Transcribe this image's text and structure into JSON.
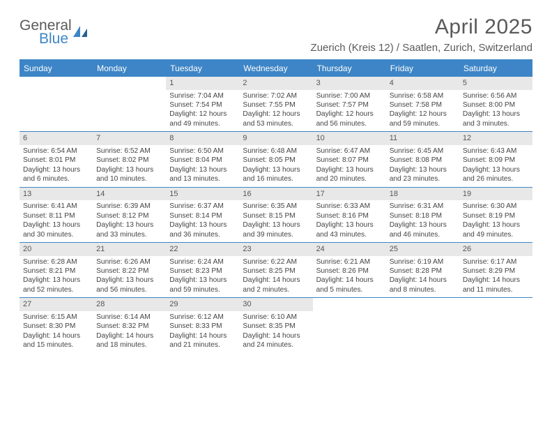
{
  "logo": {
    "word1": "General",
    "word2": "Blue"
  },
  "title": "April 2025",
  "location": "Zuerich (Kreis 12) / Saatlen, Zurich, Switzerland",
  "colors": {
    "brand_blue": "#3d85c6",
    "text_gray": "#5a5a5a",
    "cell_text": "#444444",
    "daynum_bg": "#e8e8e8",
    "background": "#ffffff"
  },
  "typography": {
    "title_fontsize": 30,
    "location_fontsize": 15,
    "weekday_fontsize": 12,
    "cell_fontsize": 10.2,
    "daynum_fontsize": 11
  },
  "weekdays": [
    "Sunday",
    "Monday",
    "Tuesday",
    "Wednesday",
    "Thursday",
    "Friday",
    "Saturday"
  ],
  "weeks": [
    [
      {
        "n": "",
        "sr": "",
        "ss": "",
        "dl1": "",
        "dl2": "",
        "empty": true
      },
      {
        "n": "",
        "sr": "",
        "ss": "",
        "dl1": "",
        "dl2": "",
        "empty": true
      },
      {
        "n": "1",
        "sr": "Sunrise: 7:04 AM",
        "ss": "Sunset: 7:54 PM",
        "dl1": "Daylight: 12 hours",
        "dl2": "and 49 minutes."
      },
      {
        "n": "2",
        "sr": "Sunrise: 7:02 AM",
        "ss": "Sunset: 7:55 PM",
        "dl1": "Daylight: 12 hours",
        "dl2": "and 53 minutes."
      },
      {
        "n": "3",
        "sr": "Sunrise: 7:00 AM",
        "ss": "Sunset: 7:57 PM",
        "dl1": "Daylight: 12 hours",
        "dl2": "and 56 minutes."
      },
      {
        "n": "4",
        "sr": "Sunrise: 6:58 AM",
        "ss": "Sunset: 7:58 PM",
        "dl1": "Daylight: 12 hours",
        "dl2": "and 59 minutes."
      },
      {
        "n": "5",
        "sr": "Sunrise: 6:56 AM",
        "ss": "Sunset: 8:00 PM",
        "dl1": "Daylight: 13 hours",
        "dl2": "and 3 minutes."
      }
    ],
    [
      {
        "n": "6",
        "sr": "Sunrise: 6:54 AM",
        "ss": "Sunset: 8:01 PM",
        "dl1": "Daylight: 13 hours",
        "dl2": "and 6 minutes."
      },
      {
        "n": "7",
        "sr": "Sunrise: 6:52 AM",
        "ss": "Sunset: 8:02 PM",
        "dl1": "Daylight: 13 hours",
        "dl2": "and 10 minutes."
      },
      {
        "n": "8",
        "sr": "Sunrise: 6:50 AM",
        "ss": "Sunset: 8:04 PM",
        "dl1": "Daylight: 13 hours",
        "dl2": "and 13 minutes."
      },
      {
        "n": "9",
        "sr": "Sunrise: 6:48 AM",
        "ss": "Sunset: 8:05 PM",
        "dl1": "Daylight: 13 hours",
        "dl2": "and 16 minutes."
      },
      {
        "n": "10",
        "sr": "Sunrise: 6:47 AM",
        "ss": "Sunset: 8:07 PM",
        "dl1": "Daylight: 13 hours",
        "dl2": "and 20 minutes."
      },
      {
        "n": "11",
        "sr": "Sunrise: 6:45 AM",
        "ss": "Sunset: 8:08 PM",
        "dl1": "Daylight: 13 hours",
        "dl2": "and 23 minutes."
      },
      {
        "n": "12",
        "sr": "Sunrise: 6:43 AM",
        "ss": "Sunset: 8:09 PM",
        "dl1": "Daylight: 13 hours",
        "dl2": "and 26 minutes."
      }
    ],
    [
      {
        "n": "13",
        "sr": "Sunrise: 6:41 AM",
        "ss": "Sunset: 8:11 PM",
        "dl1": "Daylight: 13 hours",
        "dl2": "and 30 minutes."
      },
      {
        "n": "14",
        "sr": "Sunrise: 6:39 AM",
        "ss": "Sunset: 8:12 PM",
        "dl1": "Daylight: 13 hours",
        "dl2": "and 33 minutes."
      },
      {
        "n": "15",
        "sr": "Sunrise: 6:37 AM",
        "ss": "Sunset: 8:14 PM",
        "dl1": "Daylight: 13 hours",
        "dl2": "and 36 minutes."
      },
      {
        "n": "16",
        "sr": "Sunrise: 6:35 AM",
        "ss": "Sunset: 8:15 PM",
        "dl1": "Daylight: 13 hours",
        "dl2": "and 39 minutes."
      },
      {
        "n": "17",
        "sr": "Sunrise: 6:33 AM",
        "ss": "Sunset: 8:16 PM",
        "dl1": "Daylight: 13 hours",
        "dl2": "and 43 minutes."
      },
      {
        "n": "18",
        "sr": "Sunrise: 6:31 AM",
        "ss": "Sunset: 8:18 PM",
        "dl1": "Daylight: 13 hours",
        "dl2": "and 46 minutes."
      },
      {
        "n": "19",
        "sr": "Sunrise: 6:30 AM",
        "ss": "Sunset: 8:19 PM",
        "dl1": "Daylight: 13 hours",
        "dl2": "and 49 minutes."
      }
    ],
    [
      {
        "n": "20",
        "sr": "Sunrise: 6:28 AM",
        "ss": "Sunset: 8:21 PM",
        "dl1": "Daylight: 13 hours",
        "dl2": "and 52 minutes."
      },
      {
        "n": "21",
        "sr": "Sunrise: 6:26 AM",
        "ss": "Sunset: 8:22 PM",
        "dl1": "Daylight: 13 hours",
        "dl2": "and 56 minutes."
      },
      {
        "n": "22",
        "sr": "Sunrise: 6:24 AM",
        "ss": "Sunset: 8:23 PM",
        "dl1": "Daylight: 13 hours",
        "dl2": "and 59 minutes."
      },
      {
        "n": "23",
        "sr": "Sunrise: 6:22 AM",
        "ss": "Sunset: 8:25 PM",
        "dl1": "Daylight: 14 hours",
        "dl2": "and 2 minutes."
      },
      {
        "n": "24",
        "sr": "Sunrise: 6:21 AM",
        "ss": "Sunset: 8:26 PM",
        "dl1": "Daylight: 14 hours",
        "dl2": "and 5 minutes."
      },
      {
        "n": "25",
        "sr": "Sunrise: 6:19 AM",
        "ss": "Sunset: 8:28 PM",
        "dl1": "Daylight: 14 hours",
        "dl2": "and 8 minutes."
      },
      {
        "n": "26",
        "sr": "Sunrise: 6:17 AM",
        "ss": "Sunset: 8:29 PM",
        "dl1": "Daylight: 14 hours",
        "dl2": "and 11 minutes."
      }
    ],
    [
      {
        "n": "27",
        "sr": "Sunrise: 6:15 AM",
        "ss": "Sunset: 8:30 PM",
        "dl1": "Daylight: 14 hours",
        "dl2": "and 15 minutes."
      },
      {
        "n": "28",
        "sr": "Sunrise: 6:14 AM",
        "ss": "Sunset: 8:32 PM",
        "dl1": "Daylight: 14 hours",
        "dl2": "and 18 minutes."
      },
      {
        "n": "29",
        "sr": "Sunrise: 6:12 AM",
        "ss": "Sunset: 8:33 PM",
        "dl1": "Daylight: 14 hours",
        "dl2": "and 21 minutes."
      },
      {
        "n": "30",
        "sr": "Sunrise: 6:10 AM",
        "ss": "Sunset: 8:35 PM",
        "dl1": "Daylight: 14 hours",
        "dl2": "and 24 minutes."
      },
      {
        "n": "",
        "sr": "",
        "ss": "",
        "dl1": "",
        "dl2": "",
        "empty": true
      },
      {
        "n": "",
        "sr": "",
        "ss": "",
        "dl1": "",
        "dl2": "",
        "empty": true
      },
      {
        "n": "",
        "sr": "",
        "ss": "",
        "dl1": "",
        "dl2": "",
        "empty": true
      }
    ]
  ]
}
